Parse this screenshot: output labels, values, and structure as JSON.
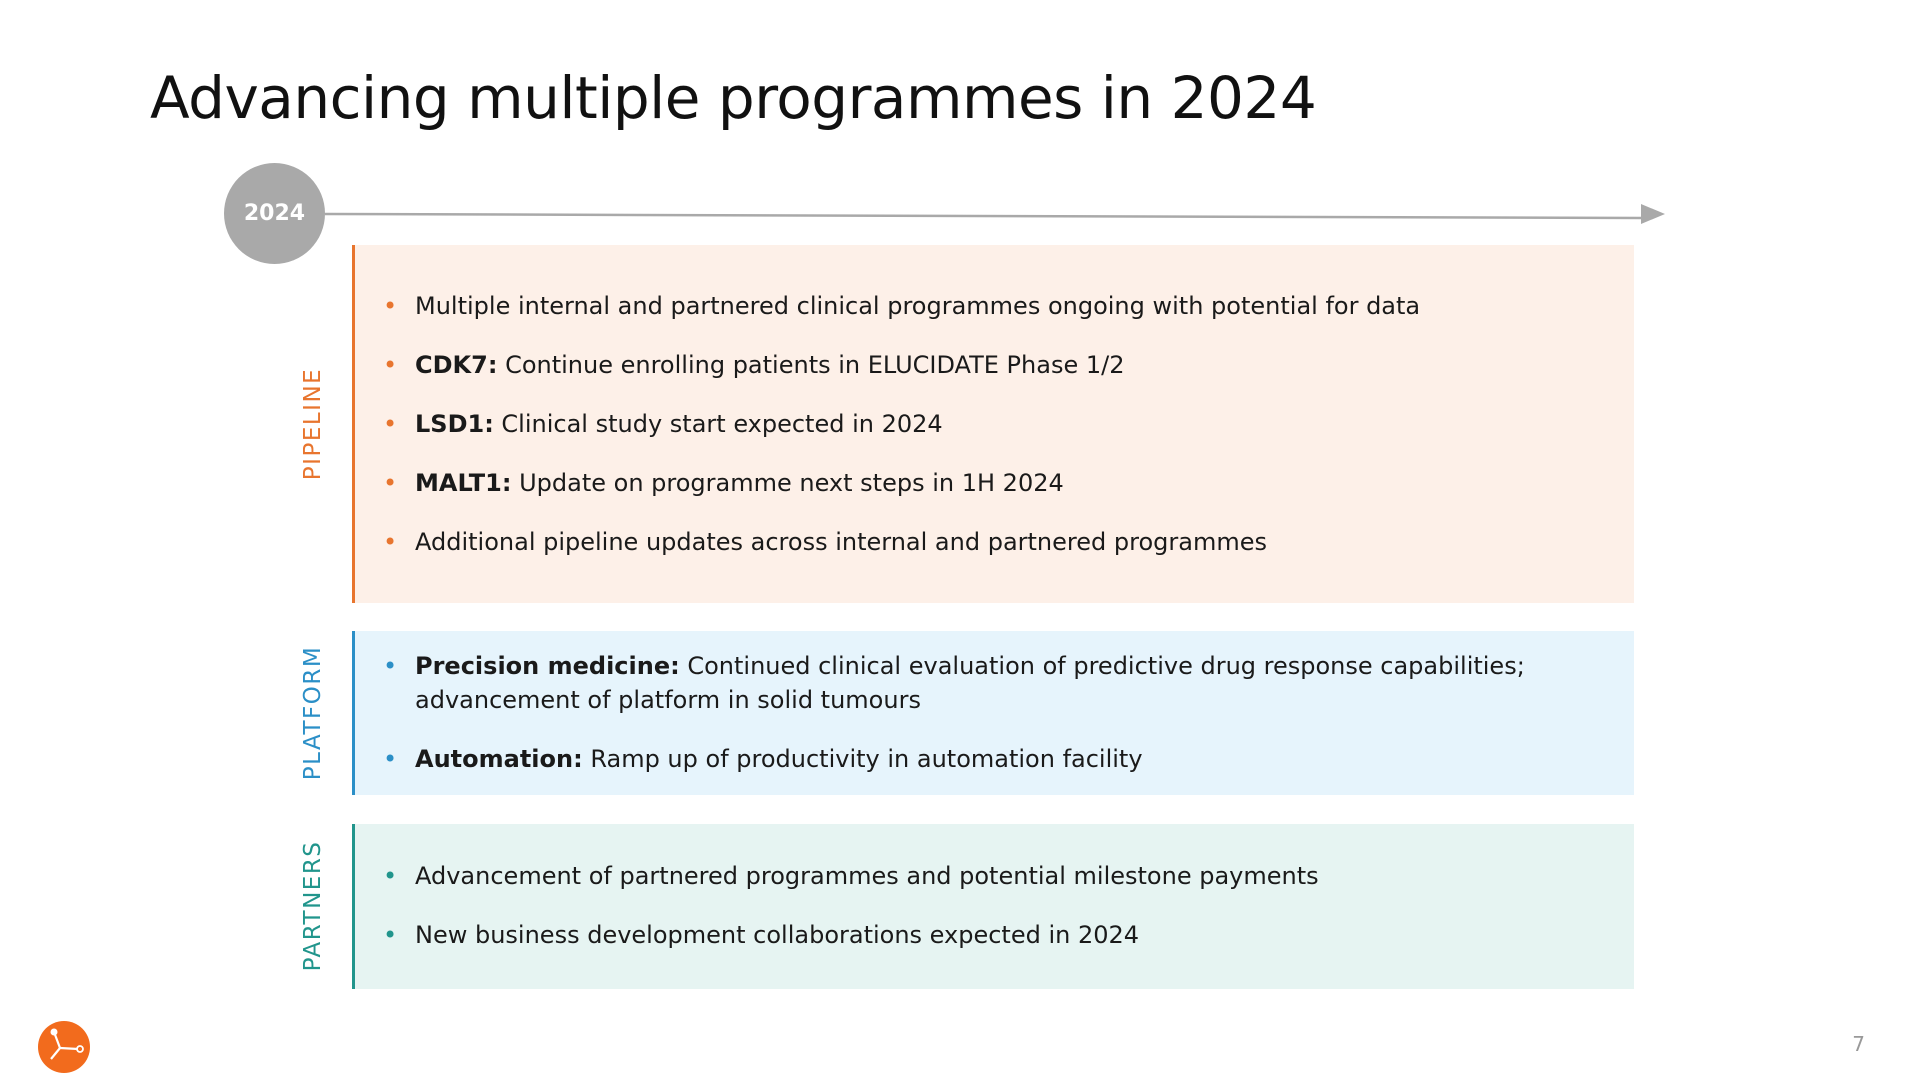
{
  "title": "Advancing multiple programmes in 2024",
  "year_badge": "2024",
  "sections": {
    "pipeline": {
      "label": "PIPELINE",
      "color": "#e8752e",
      "bullets": [
        {
          "bold": "",
          "text": "Multiple internal and partnered clinical programmes ongoing with potential for data"
        },
        {
          "bold": "CDK7:",
          "text": " Continue enrolling patients in ELUCIDATE Phase 1/2"
        },
        {
          "bold": "LSD1:",
          "text": " Clinical study start expected in 2024"
        },
        {
          "bold": "MALT1:",
          "text": " Update on programme next steps in 1H 2024"
        },
        {
          "bold": "",
          "text": "Additional pipeline updates across internal and partnered programmes"
        }
      ]
    },
    "platform": {
      "label": "PLATFORM",
      "color": "#2b8fc7",
      "bullets": [
        {
          "bold": "Precision medicine:",
          "text": " Continued clinical evaluation of predictive drug response capabilities; advancement of platform in solid tumours"
        },
        {
          "bold": "Automation:",
          "text": " Ramp up of productivity in automation facility"
        }
      ]
    },
    "partners": {
      "label": "PARTNERS",
      "color": "#21958c",
      "bullets": [
        {
          "bold": "",
          "text": "Advancement of partnered programmes and potential milestone payments"
        },
        {
          "bold": "",
          "text": "New business development collaborations expected in 2024"
        }
      ]
    }
  },
  "bullet_glyph": "•",
  "page_number": "7",
  "logo_icon": "company-logo-icon",
  "colors": {
    "badge": "#a9a9a9",
    "timeline": "#a9a9a9",
    "logo": "#f26b1d"
  }
}
